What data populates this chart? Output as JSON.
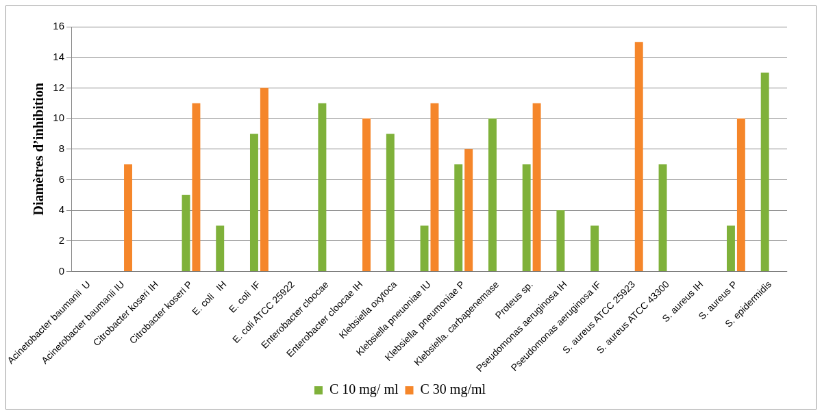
{
  "chart_data": {
    "type": "bar",
    "ylabel": "Diamètres d’inhibition",
    "categories": [
      "Acinetobacter baumanii  U",
      "Acinetobacter baumanii IU",
      "Citrobacter koseri IH",
      "Citrobacter koseri P",
      "E. coli   IH",
      "E. coli  IF",
      "E. coli ATCC 25922",
      "Enterobacter cloocae",
      "Enterobacter cloocae IH",
      "Klebsiella oxytoca",
      "Klebsiella pneuoniae IU",
      "Klebsiella  pneumoniae P",
      "Klebsiella. carbapenemase",
      "Proteus sp.",
      "Pseudomonas aeruginosa IH",
      "Pseudomonas aeruginosa IF",
      "S. aureus ATCC 25923",
      "S. aureus ATCC 43300",
      "S. aureus IH",
      "S. aureus P",
      "S. epidermidis"
    ],
    "series": [
      {
        "name": "C 10 mg/ ml",
        "color": "#7fb13a",
        "values": [
          0,
          0,
          0,
          5,
          3,
          9,
          0,
          11,
          0,
          9,
          3,
          7,
          10,
          7,
          4,
          3,
          0,
          7,
          0,
          3,
          13
        ]
      },
      {
        "name": "C 30 mg/ml",
        "color": "#f5862a",
        "values": [
          0,
          7,
          0,
          11,
          0,
          12,
          0,
          0,
          10,
          0,
          11,
          8,
          0,
          11,
          0,
          0,
          15,
          0,
          0,
          10,
          0
        ]
      }
    ],
    "ylim": [
      0,
      16
    ],
    "yticks": [
      0,
      2,
      4,
      6,
      8,
      10,
      12,
      14,
      16
    ],
    "grid": "y",
    "legend": "bottom"
  }
}
